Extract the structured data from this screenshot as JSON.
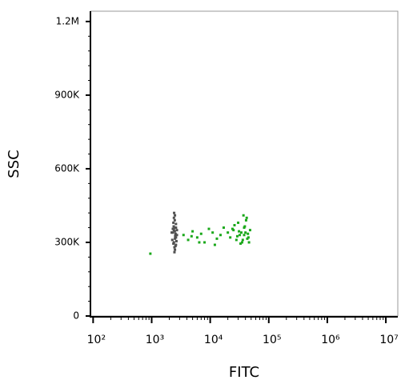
{
  "chart_data": {
    "type": "scatter",
    "x_label": "FITC",
    "y_label": "SSC",
    "xscale": "log",
    "xlim": [
      90,
      16000000
    ],
    "xticks": [
      {
        "value": 100,
        "label": "10²"
      },
      {
        "value": 1000,
        "label": "10³"
      },
      {
        "value": 10000,
        "label": "10⁴"
      },
      {
        "value": 100000,
        "label": "10⁵"
      },
      {
        "value": 1000000,
        "label": "10⁶"
      },
      {
        "value": 10000000,
        "label": "10⁷"
      }
    ],
    "ylim": [
      0,
      1242000
    ],
    "yticks": [
      0,
      {
        "value": 300000,
        "label": "300K"
      },
      {
        "value": 600000,
        "label": "600K"
      },
      {
        "value": 900000,
        "label": "900K"
      },
      {
        "value": 1200000,
        "label": "1.2M"
      }
    ],
    "series": [
      {
        "color": "#505050",
        "x": [
          2300,
          2400,
          2500,
          2600,
          2450,
          2350,
          2550,
          2700,
          2250,
          2500,
          2400,
          2600,
          2480,
          2520,
          2380,
          2650,
          2420,
          2560,
          2300,
          2500,
          2450,
          2600,
          2350,
          2550,
          2480,
          2400,
          2700,
          2500,
          2200,
          2600
        ],
        "values": [
          340000,
          300000,
          360000,
          320000,
          280000,
          380000,
          330000,
          350000,
          310000,
          270000,
          400000,
          290000,
          345000,
          325000,
          365000,
          305000,
          420000,
          335000,
          355000,
          315000,
          260000,
          375000,
          295000,
          285000,
          390000,
          350000,
          330000,
          410000,
          340000,
          360000
        ]
      },
      {
        "color": "#1aa81a",
        "x": [
          950,
          3500,
          4200,
          5000,
          6000,
          7000,
          8000,
          9500,
          11000,
          13000,
          15000,
          17000,
          12000,
          6500,
          4800,
          20000,
          22000,
          25000,
          28000,
          30000,
          32000,
          35000,
          38000,
          40000,
          42000,
          45000,
          48000,
          26000,
          31000,
          36000,
          41000,
          44000,
          33000,
          29000,
          37000,
          39000,
          24000,
          46000,
          34000,
          38000,
          43000
        ],
        "values": [
          254000,
          330000,
          310000,
          345000,
          320000,
          335000,
          300000,
          355000,
          340000,
          315000,
          330000,
          360000,
          290000,
          300000,
          325000,
          340000,
          320000,
          350000,
          310000,
          380000,
          330000,
          300000,
          360000,
          340000,
          400000,
          320000,
          350000,
          370000,
          345000,
          310000,
          390000,
          335000,
          295000,
          325000,
          410000,
          365000,
          355000,
          300000,
          340000,
          330000,
          315000
        ]
      }
    ]
  }
}
